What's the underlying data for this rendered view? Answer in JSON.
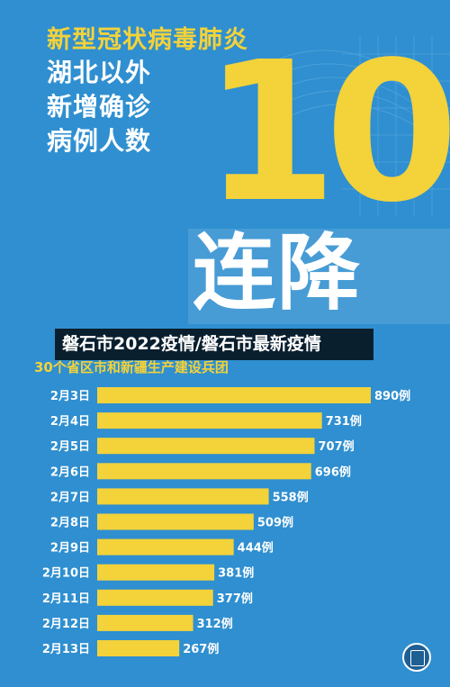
{
  "headline": {
    "line1": "新型冠状病毒肺炎",
    "line2": "湖北以外",
    "line3": "新增确诊",
    "line4": "病例人数",
    "big_number": "10",
    "big_text": "连降"
  },
  "banner": "磐石市2022疫情/磐石市最新疫情",
  "subtitle": "30个省区市和新疆生产建设兵团",
  "colors": {
    "background": "#2f8fd0",
    "accent": "#f3d23a",
    "bar": "#f3d23a",
    "banner": "#000000"
  },
  "chart_data": {
    "type": "bar",
    "orientation": "horizontal",
    "title": "",
    "categories": [
      "2月3日",
      "2月4日",
      "2月5日",
      "2月6日",
      "2月7日",
      "2月8日",
      "2月9日",
      "2月10日",
      "2月11日",
      "2月12日",
      "2月13日"
    ],
    "values": [
      890,
      731,
      707,
      696,
      558,
      509,
      444,
      381,
      377,
      312,
      267
    ],
    "value_labels": [
      "890例",
      "731例",
      "707例",
      "696例",
      "558例",
      "509例",
      "444例",
      "381例",
      "377例",
      "312例",
      "267例"
    ],
    "unit": "例",
    "xlim": [
      0,
      1000
    ],
    "grid": false,
    "legend": "none"
  }
}
